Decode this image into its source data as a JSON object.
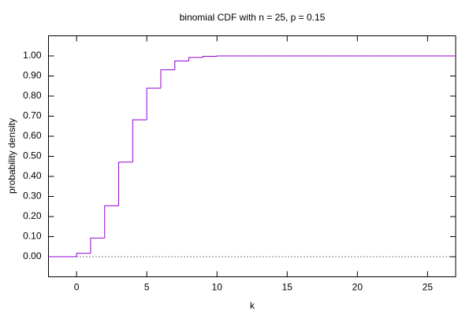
{
  "chart_data": {
    "type": "step",
    "title": "binomial CDF with n = 25, p = 0.15",
    "xlabel": "k",
    "ylabel": "probability density",
    "x": [
      -2,
      -1,
      0,
      1,
      2,
      3,
      4,
      5,
      6,
      7,
      8,
      9,
      10,
      11,
      12,
      13,
      14,
      15,
      16,
      17,
      18,
      19,
      20,
      21,
      22,
      23,
      24,
      25,
      26,
      27
    ],
    "series": [
      {
        "name": "binomial CDF",
        "color": "#9400d3",
        "values": [
          0,
          0,
          0.017,
          0.093,
          0.254,
          0.471,
          0.682,
          0.839,
          0.931,
          0.975,
          0.992,
          0.998,
          1.0,
          1.0,
          1.0,
          1.0,
          1.0,
          1.0,
          1.0,
          1.0,
          1.0,
          1.0,
          1.0,
          1.0,
          1.0,
          1.0,
          1.0,
          1.0,
          1.0,
          1.0
        ]
      }
    ],
    "xlim": [
      -2,
      27
    ],
    "xticks": [
      0,
      5,
      10,
      15,
      20,
      25
    ],
    "ylim": [
      -0.1,
      1.1
    ],
    "yticks": [
      {
        "value": 0,
        "label": "0.00"
      },
      {
        "value": 0.1,
        "label": "0.10"
      },
      {
        "value": 0.2,
        "label": "0.20"
      },
      {
        "value": 0.3,
        "label": "0.30"
      },
      {
        "value": 0.4,
        "label": "0.40"
      },
      {
        "value": 0.5,
        "label": "0.50"
      },
      {
        "value": 0.6,
        "label": "0.60"
      },
      {
        "value": 0.7,
        "label": "0.70"
      },
      {
        "value": 0.8,
        "label": "0.80"
      },
      {
        "value": 0.9,
        "label": "0.90"
      },
      {
        "value": 1.0,
        "label": "1.00"
      }
    ],
    "zeroaxis": true,
    "legend": false
  }
}
